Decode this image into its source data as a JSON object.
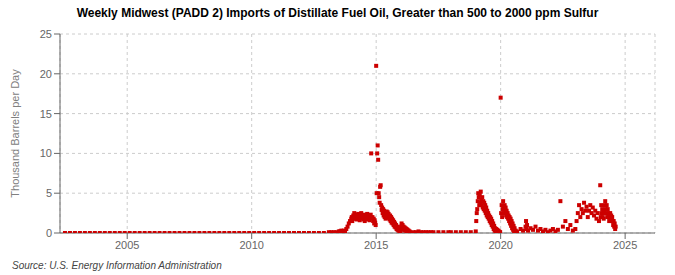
{
  "chart_data": {
    "type": "scatter",
    "title": "Weekly Midwest (PADD 2) Imports of Distillate Fuel Oil, Greater than 500 to 2000 ppm Sulfur",
    "ylabel": "Thousand Barrels per Day",
    "source": "Source: U.S. Energy Information Administration",
    "color": "#cc0000",
    "marker": "square",
    "grid": true,
    "xlim": [
      2002.3,
      2026.2
    ],
    "xticks": [
      2005,
      2010,
      2015,
      2020,
      2025
    ],
    "ylim": [
      0,
      25
    ],
    "yticks": [
      0,
      5,
      10,
      15,
      20,
      25
    ],
    "x": [
      2002.5,
      2002.7,
      2002.9,
      2003.1,
      2003.3,
      2003.5,
      2003.7,
      2003.9,
      2004.1,
      2004.3,
      2004.5,
      2004.7,
      2004.9,
      2005.1,
      2005.3,
      2005.5,
      2005.7,
      2005.9,
      2006.1,
      2006.3,
      2006.5,
      2006.7,
      2006.9,
      2007.1,
      2007.3,
      2007.5,
      2007.7,
      2007.9,
      2008.1,
      2008.3,
      2008.5,
      2008.7,
      2008.9,
      2009.1,
      2009.3,
      2009.5,
      2009.7,
      2009.9,
      2010.1,
      2010.3,
      2010.5,
      2010.7,
      2010.9,
      2011.1,
      2011.3,
      2011.5,
      2011.7,
      2011.9,
      2012.1,
      2012.3,
      2012.5,
      2012.7,
      2012.9,
      2013.1,
      2013.2,
      2013.3,
      2013.4,
      2013.5,
      2013.55,
      2013.6,
      2013.65,
      2013.7,
      2013.75,
      2013.8,
      2013.85,
      2013.9,
      2013.95,
      2014.0,
      2014.02,
      2014.04,
      2014.06,
      2014.08,
      2014.1,
      2014.12,
      2014.14,
      2014.16,
      2014.18,
      2014.2,
      2014.22,
      2014.24,
      2014.26,
      2014.28,
      2014.3,
      2014.32,
      2014.34,
      2014.36,
      2014.38,
      2014.4,
      2014.42,
      2014.44,
      2014.46,
      2014.48,
      2014.5,
      2014.52,
      2014.54,
      2014.56,
      2014.58,
      2014.6,
      2014.62,
      2014.64,
      2014.66,
      2014.68,
      2014.7,
      2014.72,
      2014.74,
      2014.76,
      2014.78,
      2014.8,
      2014.85,
      2014.88,
      2014.9,
      2014.92,
      2014.94,
      2014.96,
      2014.98,
      2015.0,
      2015.02,
      2015.04,
      2015.06,
      2015.08,
      2015.1,
      2015.12,
      2015.14,
      2015.16,
      2015.18,
      2015.2,
      2015.22,
      2015.24,
      2015.26,
      2015.28,
      2015.3,
      2015.32,
      2015.34,
      2015.36,
      2015.38,
      2015.4,
      2015.42,
      2015.44,
      2015.46,
      2015.48,
      2015.5,
      2015.52,
      2015.54,
      2015.56,
      2015.58,
      2015.6,
      2015.62,
      2015.64,
      2015.66,
      2015.68,
      2015.7,
      2015.72,
      2015.74,
      2015.76,
      2015.78,
      2015.8,
      2015.82,
      2015.84,
      2015.86,
      2015.88,
      2015.9,
      2015.92,
      2015.94,
      2015.96,
      2015.98,
      2016.0,
      2016.02,
      2016.04,
      2016.06,
      2016.08,
      2016.1,
      2016.12,
      2016.14,
      2016.16,
      2016.18,
      2016.2,
      2016.22,
      2016.24,
      2016.26,
      2016.28,
      2016.3,
      2016.32,
      2016.34,
      2016.36,
      2016.5,
      2016.6,
      2016.7,
      2016.8,
      2016.9,
      2017.0,
      2017.1,
      2017.2,
      2017.3,
      2017.5,
      2017.7,
      2017.9,
      2018.0,
      2018.2,
      2018.4,
      2018.6,
      2018.8,
      2019.0,
      2019.02,
      2019.04,
      2019.06,
      2019.08,
      2019.1,
      2019.12,
      2019.14,
      2019.16,
      2019.18,
      2019.2,
      2019.22,
      2019.24,
      2019.26,
      2019.28,
      2019.3,
      2019.32,
      2019.34,
      2019.36,
      2019.38,
      2019.4,
      2019.42,
      2019.44,
      2019.46,
      2019.48,
      2019.5,
      2019.52,
      2019.54,
      2019.56,
      2019.58,
      2019.6,
      2019.62,
      2019.64,
      2019.66,
      2019.68,
      2019.7,
      2019.72,
      2019.74,
      2019.76,
      2019.78,
      2019.8,
      2019.82,
      2019.84,
      2019.86,
      2019.88,
      2019.9,
      2019.92,
      2019.94,
      2019.96,
      2019.98,
      2020.0,
      2020.02,
      2020.04,
      2020.06,
      2020.08,
      2020.1,
      2020.12,
      2020.14,
      2020.16,
      2020.18,
      2020.2,
      2020.22,
      2020.24,
      2020.26,
      2020.28,
      2020.3,
      2020.32,
      2020.34,
      2020.36,
      2020.38,
      2020.4,
      2020.42,
      2020.44,
      2020.46,
      2020.48,
      2020.5,
      2020.52,
      2020.54,
      2020.56,
      2020.58,
      2020.6,
      2020.62,
      2020.64,
      2020.66,
      2020.8,
      2020.9,
      2021.0,
      2021.02,
      2021.04,
      2021.06,
      2021.1,
      2021.2,
      2021.3,
      2021.4,
      2021.5,
      2021.6,
      2021.7,
      2021.8,
      2021.9,
      2022.0,
      2022.1,
      2022.2,
      2022.3,
      2022.4,
      2022.5,
      2022.6,
      2022.7,
      2022.8,
      2022.9,
      2023.0,
      2023.05,
      2023.1,
      2023.15,
      2023.2,
      2023.25,
      2023.3,
      2023.35,
      2023.4,
      2023.45,
      2023.5,
      2023.55,
      2023.6,
      2023.65,
      2023.7,
      2023.75,
      2023.8,
      2023.85,
      2023.9,
      2023.95,
      2024.0,
      2024.02,
      2024.04,
      2024.06,
      2024.08,
      2024.1,
      2024.12,
      2024.14,
      2024.16,
      2024.18,
      2024.2,
      2024.22,
      2024.24,
      2024.26,
      2024.28,
      2024.3,
      2024.32,
      2024.34,
      2024.36,
      2024.38,
      2024.4,
      2024.42,
      2024.44,
      2024.46,
      2024.48,
      2024.5,
      2024.52,
      2024.54,
      2024.56,
      2024.58,
      2024.6,
      2024.62
    ],
    "values": [
      0,
      0,
      0,
      0,
      0,
      0,
      0,
      0,
      0,
      0,
      0,
      0,
      0,
      0,
      0,
      0,
      0,
      0,
      0,
      0,
      0,
      0,
      0,
      0,
      0,
      0,
      0,
      0,
      0,
      0,
      0,
      0,
      0,
      0,
      0,
      0,
      0,
      0,
      0,
      0,
      0,
      0,
      0,
      0,
      0,
      0,
      0,
      0,
      0,
      0,
      0,
      0,
      0,
      0.1,
      0.1,
      0.1,
      0.1,
      0.2,
      0.2,
      0.3,
      0.2,
      0.3,
      0.2,
      0.5,
      0.8,
      1.2,
      1.5,
      1.8,
      2.0,
      1.5,
      1.8,
      2.2,
      1.9,
      2.5,
      2.1,
      2.3,
      1.8,
      2.0,
      1.7,
      2.2,
      1.9,
      2.4,
      1.8,
      2.1,
      1.6,
      2.3,
      1.9,
      2.5,
      2.0,
      1.8,
      2.2,
      2.0,
      1.7,
      2.3,
      1.5,
      2.0,
      1.8,
      2.1,
      1.9,
      2.4,
      1.7,
      2.2,
      1.8,
      2.0,
      1.6,
      1.9,
      2.3,
      10.0,
      2.0,
      1.5,
      1.8,
      1.2,
      1.6,
      1.3,
      1.0,
      21.0,
      5.0,
      10.0,
      11.0,
      9.2,
      5.0,
      4.5,
      3.8,
      5.8,
      6.0,
      3.5,
      2.9,
      3.2,
      2.5,
      3.0,
      2.2,
      2.8,
      2.0,
      2.5,
      1.8,
      2.3,
      2.7,
      2.1,
      2.6,
      1.9,
      2.4,
      2.0,
      1.7,
      2.2,
      1.5,
      2.0,
      1.3,
      1.8,
      1.2,
      1.6,
      1.0,
      1.4,
      0.8,
      1.2,
      0.7,
      1.0,
      0.5,
      0.8,
      0.4,
      0.6,
      0.3,
      0.5,
      0.2,
      0.4,
      0.2,
      0.8,
      1.2,
      0.6,
      1.0,
      0.5,
      0.8,
      0.4,
      0.7,
      0.3,
      0.6,
      0.3,
      0.5,
      0.2,
      0.4,
      0.2,
      0.3,
      0.1,
      0.2,
      0.1,
      0.1,
      0.1,
      0.2,
      0.1,
      0.1,
      0.1,
      0.1,
      0.1,
      0.1,
      0.1,
      0.1,
      0.1,
      0.1,
      0.1,
      0.1,
      0.1,
      0.1,
      0.2,
      1.5,
      2.5,
      3.0,
      4.0,
      5.0,
      4.5,
      3.5,
      4.8,
      3.8,
      5.2,
      4.2,
      3.5,
      4.5,
      3.2,
      4.0,
      3.0,
      3.8,
      2.8,
      3.5,
      2.5,
      3.2,
      2.2,
      2.8,
      2.0,
      2.5,
      1.8,
      2.2,
      1.5,
      2.0,
      1.3,
      1.8,
      1.0,
      1.5,
      0.8,
      1.2,
      0.5,
      0.9,
      0.3,
      0.6,
      0.2,
      0.5,
      0.2,
      0.4,
      0.1,
      0.3,
      0.1,
      0.2,
      0.1,
      0.1,
      17.0,
      2.5,
      3.5,
      2.0,
      3.0,
      4.0,
      3.2,
      2.5,
      3.5,
      2.8,
      3.2,
      2.2,
      2.8,
      2.0,
      2.5,
      1.8,
      2.2,
      1.5,
      2.0,
      1.2,
      1.8,
      0.9,
      1.5,
      0.6,
      1.2,
      0.4,
      0.9,
      0.2,
      0.6,
      0.1,
      0.3,
      0.1,
      0.2,
      0.1,
      0.5,
      0.3,
      0.8,
      1.5,
      0.5,
      1.0,
      0.3,
      0.6,
      0.4,
      0.8,
      0.3,
      0.5,
      0.2,
      0.4,
      0.1,
      0.3,
      0.5,
      0.2,
      0.4,
      4.0,
      0.8,
      1.5,
      0.5,
      1.0,
      0.3,
      0.5,
      1.5,
      2.5,
      3.5,
      2.0,
      3.0,
      2.5,
      3.8,
      2.8,
      3.3,
      2.0,
      2.8,
      3.5,
      2.5,
      3.2,
      2.2,
      2.8,
      1.8,
      2.5,
      1.5,
      6.0,
      2.0,
      3.5,
      2.5,
      3.0,
      2.0,
      2.8,
      1.8,
      2.5,
      3.5,
      4.0,
      3.0,
      2.5,
      3.5,
      2.0,
      3.0,
      2.5,
      2.0,
      1.5,
      2.0,
      2.5,
      1.8,
      2.2,
      1.5,
      2.0,
      1.5,
      1.0,
      1.5,
      0.8,
      1.2,
      0.5,
      0.8
    ]
  }
}
